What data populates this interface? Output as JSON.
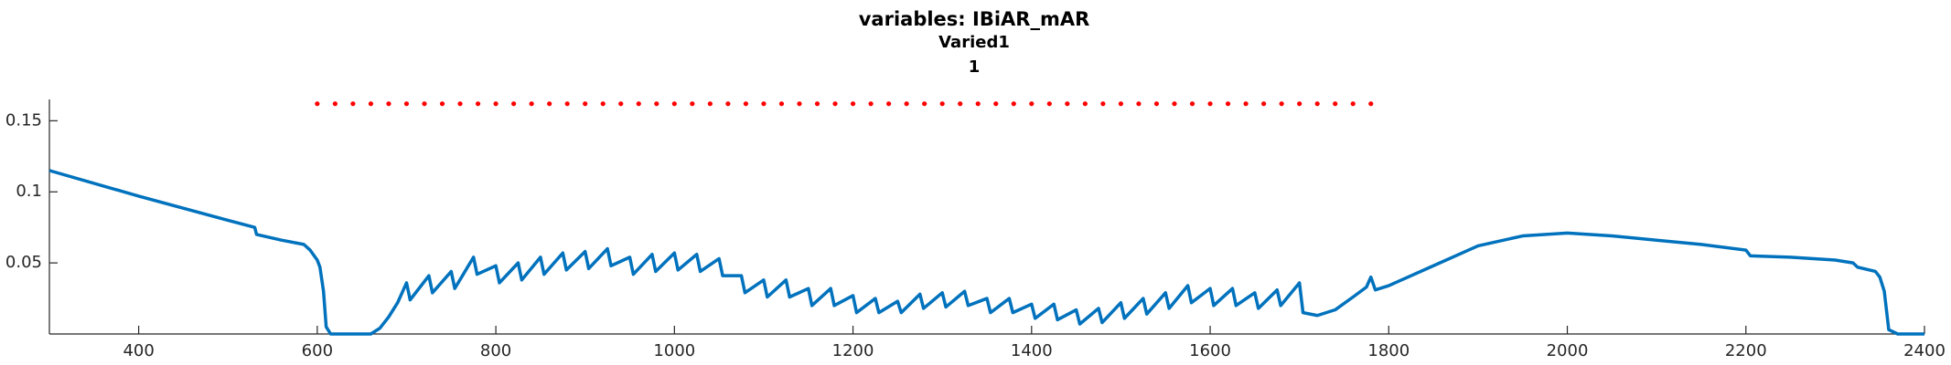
{
  "chart_data": {
    "type": "line",
    "title": "variables: IBiAR_mAR",
    "subtitle_lines": [
      "Varied1",
      "1"
    ],
    "xlim": [
      300,
      2400
    ],
    "xticks": [
      400,
      600,
      800,
      1000,
      1200,
      1400,
      1600,
      1800,
      2000,
      2200,
      2400
    ],
    "ylim": [
      0,
      0.165
    ],
    "yticks": [
      0.05,
      0.1,
      0.15
    ],
    "grid": false,
    "series": [
      {
        "color": "#0072BD",
        "style": "line",
        "x": [
          300,
          400,
          500,
          530,
          532,
          560,
          585,
          592,
          600,
          603,
          607,
          610,
          615,
          660,
          670,
          680,
          690,
          700,
          704,
          725,
          729,
          750,
          754,
          775,
          779,
          800,
          804,
          825,
          829,
          850,
          854,
          875,
          879,
          900,
          904,
          925,
          929,
          950,
          954,
          975,
          979,
          1000,
          1004,
          1025,
          1029,
          1050,
          1054,
          1075,
          1079,
          1100,
          1104,
          1125,
          1129,
          1150,
          1154,
          1175,
          1179,
          1200,
          1204,
          1225,
          1229,
          1250,
          1254,
          1275,
          1279,
          1300,
          1304,
          1325,
          1329,
          1350,
          1354,
          1375,
          1379,
          1400,
          1404,
          1425,
          1429,
          1450,
          1454,
          1475,
          1479,
          1500,
          1504,
          1525,
          1529,
          1550,
          1554,
          1575,
          1579,
          1600,
          1604,
          1625,
          1629,
          1650,
          1654,
          1675,
          1679,
          1700,
          1704,
          1720,
          1740,
          1760,
          1775,
          1780,
          1785,
          1800,
          1850,
          1900,
          1950,
          2000,
          2050,
          2100,
          2150,
          2200,
          2205,
          2250,
          2300,
          2320,
          2325,
          2345,
          2350,
          2355,
          2360,
          2370,
          2400
        ],
        "values": [
          0.115,
          0.097,
          0.08,
          0.075,
          0.07,
          0.066,
          0.063,
          0.059,
          0.052,
          0.047,
          0.03,
          0.005,
          0,
          0,
          0.004,
          0.012,
          0.022,
          0.036,
          0.024,
          0.041,
          0.029,
          0.044,
          0.032,
          0.054,
          0.042,
          0.048,
          0.036,
          0.05,
          0.038,
          0.054,
          0.042,
          0.057,
          0.045,
          0.058,
          0.046,
          0.06,
          0.048,
          0.054,
          0.042,
          0.056,
          0.044,
          0.057,
          0.045,
          0.056,
          0.044,
          0.053,
          0.041,
          0.041,
          0.029,
          0.038,
          0.026,
          0.038,
          0.026,
          0.032,
          0.02,
          0.032,
          0.02,
          0.027,
          0.015,
          0.025,
          0.015,
          0.023,
          0.015,
          0.028,
          0.018,
          0.029,
          0.019,
          0.03,
          0.02,
          0.025,
          0.015,
          0.025,
          0.015,
          0.021,
          0.011,
          0.021,
          0.01,
          0.017,
          0.007,
          0.018,
          0.008,
          0.022,
          0.011,
          0.025,
          0.014,
          0.029,
          0.018,
          0.034,
          0.022,
          0.032,
          0.02,
          0.032,
          0.02,
          0.029,
          0.018,
          0.031,
          0.02,
          0.036,
          0.015,
          0.013,
          0.017,
          0.026,
          0.033,
          0.04,
          0.031,
          0.034,
          0.048,
          0.062,
          0.069,
          0.071,
          0.069,
          0.066,
          0.063,
          0.059,
          0.055,
          0.054,
          0.052,
          0.05,
          0.047,
          0.044,
          0.04,
          0.03,
          0.003,
          0,
          0
        ]
      },
      {
        "color": "#ff0000",
        "style": "dots",
        "x": [
          600,
          620,
          640,
          660,
          680,
          700,
          720,
          740,
          760,
          780,
          800,
          820,
          840,
          860,
          880,
          900,
          920,
          940,
          960,
          980,
          1000,
          1020,
          1040,
          1060,
          1080,
          1100,
          1120,
          1140,
          1160,
          1180,
          1200,
          1220,
          1240,
          1260,
          1280,
          1300,
          1320,
          1340,
          1360,
          1380,
          1400,
          1420,
          1440,
          1460,
          1480,
          1500,
          1520,
          1540,
          1560,
          1580,
          1600,
          1620,
          1640,
          1660,
          1680,
          1700,
          1720,
          1740,
          1760,
          1780
        ],
        "values": [
          0.162,
          0.162,
          0.162,
          0.162,
          0.162,
          0.162,
          0.162,
          0.162,
          0.162,
          0.162,
          0.162,
          0.162,
          0.162,
          0.162,
          0.162,
          0.162,
          0.162,
          0.162,
          0.162,
          0.162,
          0.162,
          0.162,
          0.162,
          0.162,
          0.162,
          0.162,
          0.162,
          0.162,
          0.162,
          0.162,
          0.162,
          0.162,
          0.162,
          0.162,
          0.162,
          0.162,
          0.162,
          0.162,
          0.162,
          0.162,
          0.162,
          0.162,
          0.162,
          0.162,
          0.162,
          0.162,
          0.162,
          0.162,
          0.162,
          0.162,
          0.162,
          0.162,
          0.162,
          0.162,
          0.162,
          0.162,
          0.162,
          0.162,
          0.162,
          0.162
        ]
      }
    ]
  }
}
